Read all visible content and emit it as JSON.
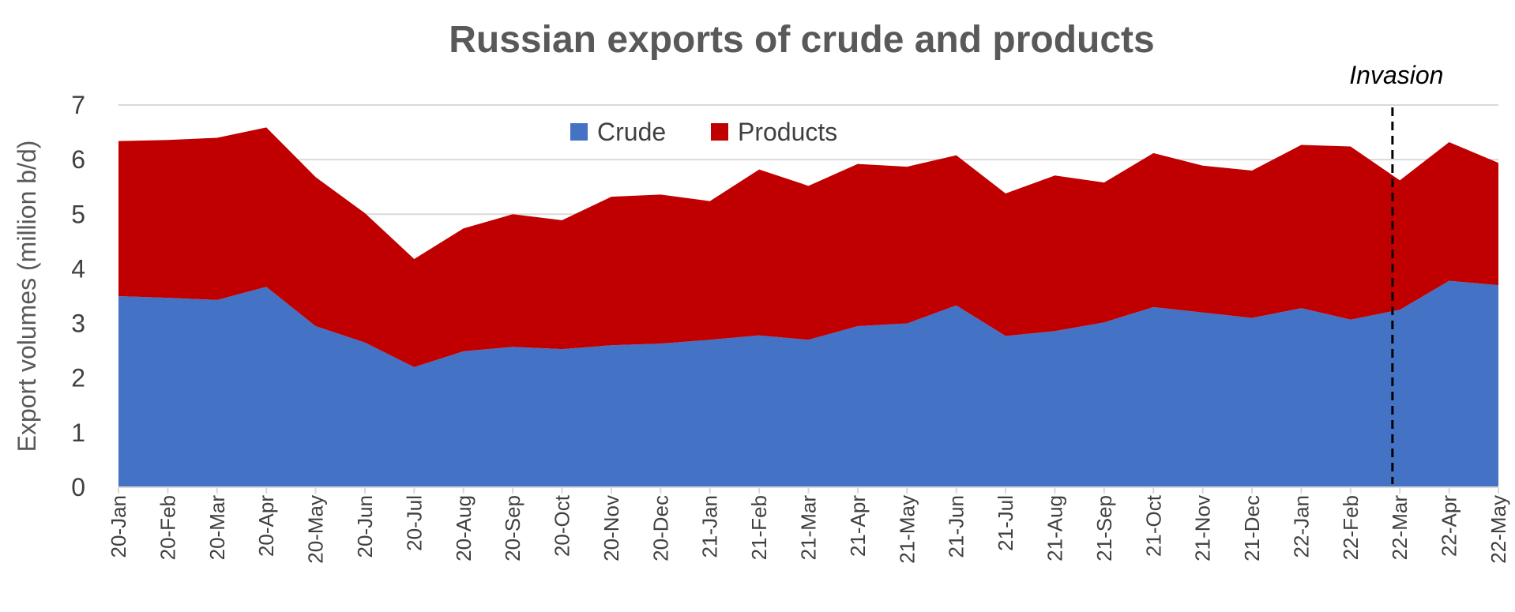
{
  "chart_data": {
    "type": "area",
    "stacked": true,
    "title": "Russian exports of crude and products",
    "ylabel": "Export volumes (million b/d)",
    "xlabel": "",
    "ylim": [
      0,
      7
    ],
    "yticks": [
      0,
      1,
      2,
      3,
      4,
      5,
      6,
      7
    ],
    "grid": true,
    "legend_position": "top-center",
    "categories": [
      "20-Jan",
      "20-Feb",
      "20-Mar",
      "20-Apr",
      "20-May",
      "20-Jun",
      "20-Jul",
      "20-Aug",
      "20-Sep",
      "20-Oct",
      "20-Nov",
      "20-Dec",
      "21-Jan",
      "21-Feb",
      "21-Mar",
      "21-Apr",
      "21-May",
      "21-Jun",
      "21-Jul",
      "21-Aug",
      "21-Sep",
      "21-Oct",
      "21-Nov",
      "21-Dec",
      "22-Jan",
      "22-Feb",
      "22-Mar",
      "22-Apr",
      "22-May"
    ],
    "series": [
      {
        "name": "Crude",
        "color": "#4472C4",
        "values": [
          3.5,
          3.47,
          3.43,
          3.67,
          2.95,
          2.65,
          2.2,
          2.49,
          2.57,
          2.53,
          2.6,
          2.63,
          2.7,
          2.78,
          2.7,
          2.95,
          3.0,
          3.33,
          2.77,
          2.86,
          3.02,
          3.3,
          3.2,
          3.1,
          3.28,
          3.07,
          3.25,
          3.78,
          3.7
        ]
      },
      {
        "name": "Products",
        "color": "#C00000",
        "values": [
          2.84,
          2.89,
          2.97,
          2.92,
          2.73,
          2.37,
          1.98,
          2.25,
          2.43,
          2.36,
          2.72,
          2.73,
          2.54,
          3.04,
          2.82,
          2.97,
          2.87,
          2.75,
          2.61,
          2.85,
          2.56,
          2.82,
          2.69,
          2.7,
          2.99,
          3.17,
          2.37,
          2.54,
          2.24
        ]
      }
    ],
    "annotations": [
      {
        "text": "Invasion",
        "x": 25.85,
        "style": "dashed-vertical-line"
      }
    ]
  }
}
